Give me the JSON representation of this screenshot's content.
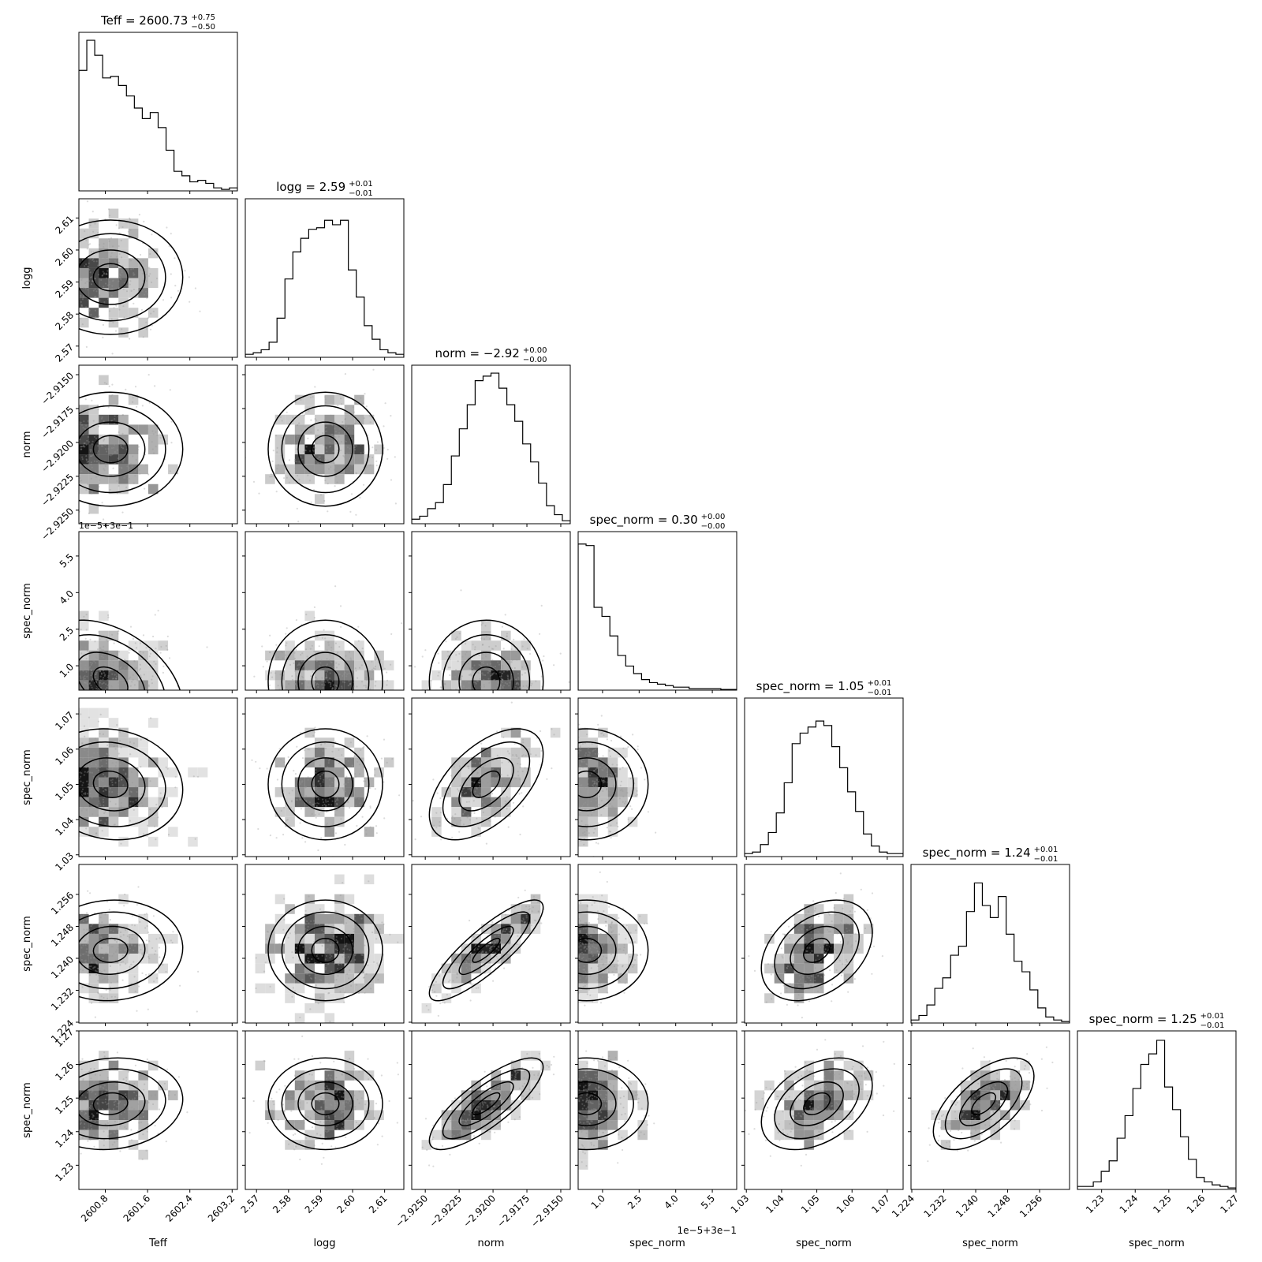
{
  "chart_data": {
    "type": "corner",
    "parameters": [
      {
        "label": "Teff",
        "title": "Teff = 2600.73",
        "title_plus": "+0.75",
        "title_minus": "−0.50",
        "ticks": [
          "2600.8",
          "2601.6",
          "2602.4",
          "2603.2"
        ],
        "tick_values": [
          2600.8,
          2601.6,
          2602.4,
          2603.2
        ],
        "range": [
          2600.3,
          2603.3
        ],
        "offset_text": ""
      },
      {
        "label": "logg",
        "title": "logg = 2.59",
        "title_plus": "+0.01",
        "title_minus": "−0.01",
        "ticks": [
          "2.57",
          "2.58",
          "2.59",
          "2.60",
          "2.61"
        ],
        "tick_values": [
          2.57,
          2.58,
          2.59,
          2.6,
          2.61
        ],
        "range": [
          2.5665,
          2.616
        ],
        "offset_text": ""
      },
      {
        "label": "norm",
        "title": "norm = −2.92",
        "title_plus": "+0.00",
        "title_minus": "−0.00",
        "ticks": [
          "−2.9250",
          "−2.9225",
          "−2.9200",
          "−2.9175",
          "−2.9150"
        ],
        "tick_values": [
          -2.925,
          -2.9225,
          -2.92,
          -2.9175,
          -2.915
        ],
        "range": [
          -2.926,
          -2.9143
        ],
        "offset_text": ""
      },
      {
        "label": "spec_norm",
        "title": "spec_norm = 0.30",
        "title_plus": "+0.00",
        "title_minus": "−0.00",
        "ticks": [
          "1.0",
          "2.5",
          "4.0",
          "5.5"
        ],
        "tick_values": [
          1.0,
          2.5,
          4.0,
          5.5
        ],
        "range": [
          0.0,
          6.5
        ],
        "offset_text": "1e−5+3e−1"
      },
      {
        "label": "spec_norm",
        "title": "spec_norm = 1.05",
        "title_plus": "+0.01",
        "title_minus": "−0.01",
        "ticks": [
          "1.03",
          "1.04",
          "1.05",
          "1.06",
          "1.07"
        ],
        "tick_values": [
          1.03,
          1.04,
          1.05,
          1.06,
          1.07
        ],
        "range": [
          1.0295,
          1.0745
        ],
        "offset_text": ""
      },
      {
        "label": "spec_norm",
        "title": "spec_norm = 1.24",
        "title_plus": "+0.01",
        "title_minus": "−0.01",
        "ticks": [
          "1.224",
          "1.232",
          "1.240",
          "1.248",
          "1.256"
        ],
        "tick_values": [
          1.224,
          1.232,
          1.24,
          1.248,
          1.256
        ],
        "range": [
          1.2238,
          1.2635
        ],
        "offset_text": ""
      },
      {
        "label": "spec_norm",
        "title": "spec_norm = 1.25",
        "title_plus": "+0.01",
        "title_minus": "−0.01",
        "ticks": [
          "1.23",
          "1.24",
          "1.25",
          "1.26",
          "1.27"
        ],
        "tick_values": [
          1.23,
          1.24,
          1.25,
          1.26,
          1.27
        ],
        "range": [
          1.2228,
          1.27
        ],
        "offset_text": ""
      }
    ],
    "histograms": [
      [
        0.8,
        1.0,
        0.9,
        0.75,
        0.76,
        0.7,
        0.63,
        0.55,
        0.48,
        0.52,
        0.42,
        0.27,
        0.13,
        0.1,
        0.06,
        0.07,
        0.05,
        0.02,
        0.01,
        0.02
      ],
      [
        0.02,
        0.03,
        0.05,
        0.1,
        0.26,
        0.52,
        0.7,
        0.79,
        0.85,
        0.86,
        0.91,
        0.88,
        0.91,
        0.58,
        0.4,
        0.21,
        0.12,
        0.05,
        0.03,
        0.02
      ],
      [
        0.03,
        0.05,
        0.1,
        0.14,
        0.26,
        0.45,
        0.63,
        0.79,
        0.95,
        0.98,
        1.0,
        0.9,
        0.79,
        0.68,
        0.53,
        0.41,
        0.27,
        0.12,
        0.06,
        0.02
      ],
      [
        0.97,
        0.96,
        0.55,
        0.49,
        0.36,
        0.23,
        0.16,
        0.11,
        0.07,
        0.05,
        0.04,
        0.03,
        0.02,
        0.02,
        0.01,
        0.01,
        0.01,
        0.01,
        0.005,
        0.005
      ],
      [
        0.02,
        0.03,
        0.08,
        0.16,
        0.29,
        0.49,
        0.75,
        0.82,
        0.86,
        0.9,
        0.87,
        0.73,
        0.59,
        0.43,
        0.3,
        0.15,
        0.07,
        0.03,
        0.02,
        0.02
      ],
      [
        0.02,
        0.05,
        0.12,
        0.23,
        0.3,
        0.45,
        0.51,
        0.74,
        0.93,
        0.78,
        0.7,
        0.84,
        0.59,
        0.41,
        0.34,
        0.22,
        0.1,
        0.04,
        0.02,
        0.01
      ],
      [
        0.02,
        0.02,
        0.05,
        0.12,
        0.19,
        0.34,
        0.49,
        0.67,
        0.83,
        0.9,
        0.99,
        0.68,
        0.53,
        0.35,
        0.2,
        0.08,
        0.05,
        0.03,
        0.02,
        0.01
      ]
    ],
    "centers": [
      2600.9,
      2.5915,
      -2.9205,
      0.35,
      1.05,
      1.242,
      1.2483
    ],
    "sigmas": [
      0.65,
      0.0085,
      0.002,
      1.2,
      0.0075,
      0.006,
      0.0065
    ],
    "correlations": [
      [
        1.0,
        0.0,
        0.0,
        -0.4,
        -0.1,
        0.05,
        0.1
      ],
      [
        0.0,
        1.0,
        0.0,
        0.0,
        0.0,
        0.0,
        0.0
      ],
      [
        0.0,
        0.0,
        1.0,
        0.0,
        0.55,
        0.85,
        0.8
      ],
      [
        -0.4,
        0.0,
        0.0,
        1.0,
        0.0,
        0.0,
        0.0
      ],
      [
        -0.1,
        0.0,
        0.55,
        0.0,
        1.0,
        0.35,
        0.4
      ],
      [
        0.05,
        0.0,
        0.85,
        0.0,
        0.35,
        1.0,
        0.6
      ],
      [
        0.1,
        0.0,
        0.8,
        0.0,
        0.4,
        0.6,
        1.0
      ]
    ]
  }
}
